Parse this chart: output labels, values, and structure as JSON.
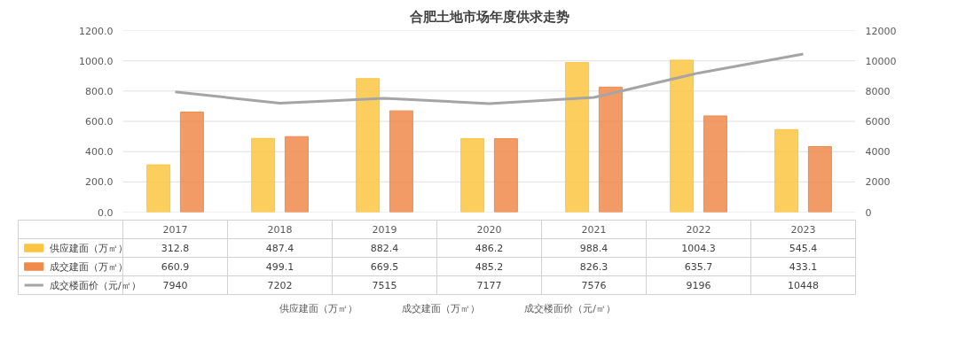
{
  "chart_data": {
    "type": "bar",
    "title": "合肥土地市场年度供求走势",
    "categories": [
      "2017",
      "2018",
      "2019",
      "2020",
      "2021",
      "2022",
      "2023"
    ],
    "series": [
      {
        "name": "供应建面（万㎡）",
        "color": "#fcc541",
        "values": [
          312.8,
          487.4,
          882.4,
          486.2,
          988.4,
          1004.3,
          545.4
        ]
      },
      {
        "name": "成交建面（万㎡）",
        "color": "#f08a4b",
        "values": [
          660.9,
          499.1,
          669.5,
          485.2,
          826.3,
          635.7,
          433.1
        ]
      },
      {
        "name": "成交楼面价（元/㎡）",
        "color": "#a5a5a5",
        "type": "line",
        "axis": "y2",
        "values": [
          7940,
          7202,
          7515,
          7177,
          7576,
          9196,
          10448
        ]
      }
    ],
    "ylim": [
      0,
      1200
    ],
    "yticks": [
      {
        "value": 0,
        "label": "0.0"
      },
      {
        "value": 200,
        "label": "200.0"
      },
      {
        "value": 400,
        "label": "400.0"
      },
      {
        "value": 600,
        "label": "600.0"
      },
      {
        "value": 800,
        "label": "800.0"
      },
      {
        "value": 1000,
        "label": "1000.0"
      },
      {
        "value": 1200,
        "label": "1200.0"
      }
    ],
    "y2lim": [
      0,
      12000
    ],
    "y2ticks": [
      0,
      2000,
      4000,
      6000,
      8000,
      10000,
      12000
    ],
    "grid": "y",
    "legend": "bottom",
    "data_labels": true
  }
}
